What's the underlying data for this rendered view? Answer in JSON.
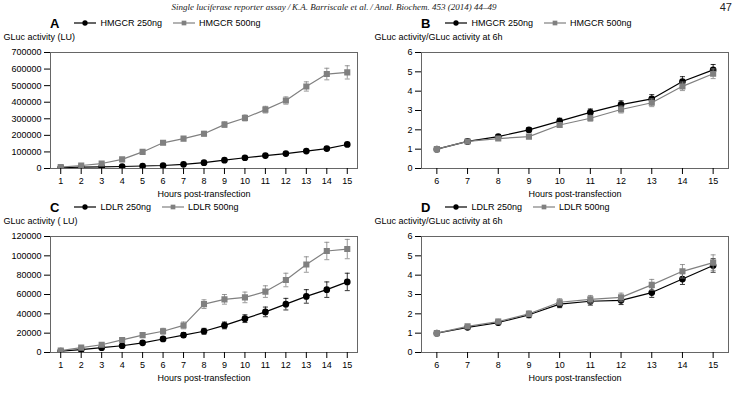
{
  "title": "Single luciferase reporter assay / K.A. Barriscale et al. / Anal. Biochem. 453 (2014) 44–49",
  "annotations": [
    "47"
  ],
  "chart_data": [
    {
      "type": "line",
      "title": "A",
      "xlabel": "Hours post-transfection",
      "ylabel": "GLuc activity (LU)",
      "xlim": [
        0.5,
        15.5
      ],
      "ylim": [
        0,
        700000
      ],
      "xticks": [
        1,
        2,
        3,
        4,
        5,
        6,
        7,
        8,
        9,
        10,
        11,
        12,
        13,
        14,
        15
      ],
      "yticks": [
        0,
        100000,
        200000,
        300000,
        400000,
        500000,
        600000,
        700000
      ],
      "legend": "upper left",
      "grid": false,
      "x": [
        1,
        2,
        3,
        4,
        5,
        6,
        7,
        8,
        9,
        10,
        11,
        12,
        13,
        14,
        15
      ],
      "series": [
        {
          "name": "HMGCR 250ng",
          "color": "#000000",
          "marker": "circle",
          "values": [
            5000,
            8000,
            10000,
            12000,
            15000,
            18000,
            25000,
            35000,
            50000,
            65000,
            78000,
            90000,
            105000,
            120000,
            145000
          ],
          "yerr": [
            1000,
            1500,
            1500,
            2000,
            2000,
            2500,
            3000,
            3500,
            4500,
            5500,
            6000,
            7000,
            8000,
            9000,
            10000
          ]
        },
        {
          "name": "HMGCR 500ng",
          "color": "#808080",
          "marker": "square",
          "values": [
            8000,
            18000,
            30000,
            55000,
            100000,
            155000,
            180000,
            210000,
            265000,
            305000,
            355000,
            410000,
            495000,
            570000,
            580000
          ],
          "yerr": [
            2000,
            3000,
            4000,
            6000,
            8000,
            10000,
            12000,
            14000,
            16000,
            18000,
            20000,
            22000,
            28000,
            35000,
            40000
          ]
        }
      ]
    },
    {
      "type": "line",
      "title": "B",
      "xlabel": "Hours post-transfection",
      "ylabel": "GLuc activity/GLuc activity at 6h",
      "xlim": [
        5.5,
        15.5
      ],
      "ylim": [
        0,
        6
      ],
      "xticks": [
        6,
        7,
        8,
        9,
        10,
        11,
        12,
        13,
        14,
        15
      ],
      "yticks": [
        0,
        1,
        2,
        3,
        4,
        5,
        6
      ],
      "legend": "upper left",
      "grid": false,
      "x": [
        6,
        7,
        8,
        9,
        10,
        11,
        12,
        13,
        14,
        15
      ],
      "series": [
        {
          "name": "HMGCR 250ng",
          "color": "#000000",
          "marker": "circle",
          "values": [
            1.0,
            1.4,
            1.65,
            2.0,
            2.45,
            2.9,
            3.3,
            3.6,
            4.5,
            5.1
          ],
          "yerr": [
            0.05,
            0.08,
            0.1,
            0.12,
            0.15,
            0.18,
            0.2,
            0.22,
            0.25,
            0.28
          ]
        },
        {
          "name": "HMGCR 500ng",
          "color": "#808080",
          "marker": "square",
          "values": [
            1.0,
            1.4,
            1.55,
            1.65,
            2.25,
            2.6,
            3.05,
            3.4,
            4.25,
            4.9
          ],
          "yerr": [
            0.05,
            0.08,
            0.1,
            0.1,
            0.12,
            0.15,
            0.18,
            0.2,
            0.22,
            0.25
          ]
        }
      ]
    },
    {
      "type": "line",
      "title": "C",
      "xlabel": "Hours post-transfection",
      "ylabel": "GLuc activity ( LU)",
      "xlim": [
        0.5,
        15.5
      ],
      "ylim": [
        0,
        120000
      ],
      "xticks": [
        1,
        2,
        3,
        4,
        5,
        6,
        7,
        8,
        9,
        10,
        11,
        12,
        13,
        14,
        15
      ],
      "yticks": [
        0,
        20000,
        40000,
        60000,
        80000,
        100000,
        120000
      ],
      "legend": "upper left",
      "grid": false,
      "x": [
        1,
        2,
        3,
        4,
        5,
        6,
        7,
        8,
        9,
        10,
        11,
        12,
        13,
        14,
        15
      ],
      "series": [
        {
          "name": "LDLR 250ng",
          "color": "#000000",
          "marker": "circle",
          "values": [
            1500,
            3000,
            5000,
            7000,
            10000,
            14000,
            18000,
            22000,
            28000,
            35000,
            42000,
            50000,
            58000,
            65000,
            73000
          ],
          "yerr": [
            300,
            600,
            800,
            1000,
            1500,
            2000,
            2500,
            3000,
            3500,
            4000,
            5000,
            6000,
            7000,
            8000,
            9000
          ]
        },
        {
          "name": "LDLR 500ng",
          "color": "#808080",
          "marker": "square",
          "values": [
            2000,
            5000,
            8000,
            13000,
            18000,
            22000,
            28000,
            50000,
            55000,
            57000,
            63000,
            75000,
            91000,
            105000,
            107000
          ],
          "yerr": [
            500,
            1000,
            1500,
            2000,
            2500,
            3000,
            3500,
            4500,
            5000,
            5500,
            6000,
            7000,
            8000,
            9000,
            10000
          ]
        }
      ]
    },
    {
      "type": "line",
      "title": "D",
      "xlabel": "Hours post-transfection",
      "ylabel": "GLuc activity/GLuc activity at 6h",
      "xlim": [
        5.5,
        15.5
      ],
      "ylim": [
        0,
        6
      ],
      "xticks": [
        6,
        7,
        8,
        9,
        10,
        11,
        12,
        13,
        14,
        15
      ],
      "yticks": [
        0,
        1,
        2,
        3,
        4,
        5,
        6
      ],
      "legend": "upper left",
      "grid": false,
      "x": [
        6,
        7,
        8,
        9,
        10,
        11,
        12,
        13,
        14,
        15
      ],
      "series": [
        {
          "name": "LDLR 250ng",
          "color": "#000000",
          "marker": "circle",
          "values": [
            1.0,
            1.3,
            1.55,
            1.95,
            2.5,
            2.65,
            2.7,
            3.1,
            3.8,
            4.5
          ],
          "yerr": [
            0.05,
            0.1,
            0.12,
            0.15,
            0.18,
            0.2,
            0.22,
            0.25,
            0.28,
            0.35
          ]
        },
        {
          "name": "LDLR 500ng",
          "color": "#808080",
          "marker": "square",
          "values": [
            1.0,
            1.35,
            1.6,
            2.0,
            2.6,
            2.75,
            2.85,
            3.5,
            4.2,
            4.65
          ],
          "yerr": [
            0.05,
            0.1,
            0.12,
            0.15,
            0.18,
            0.2,
            0.22,
            0.28,
            0.35,
            0.4
          ]
        }
      ]
    }
  ]
}
